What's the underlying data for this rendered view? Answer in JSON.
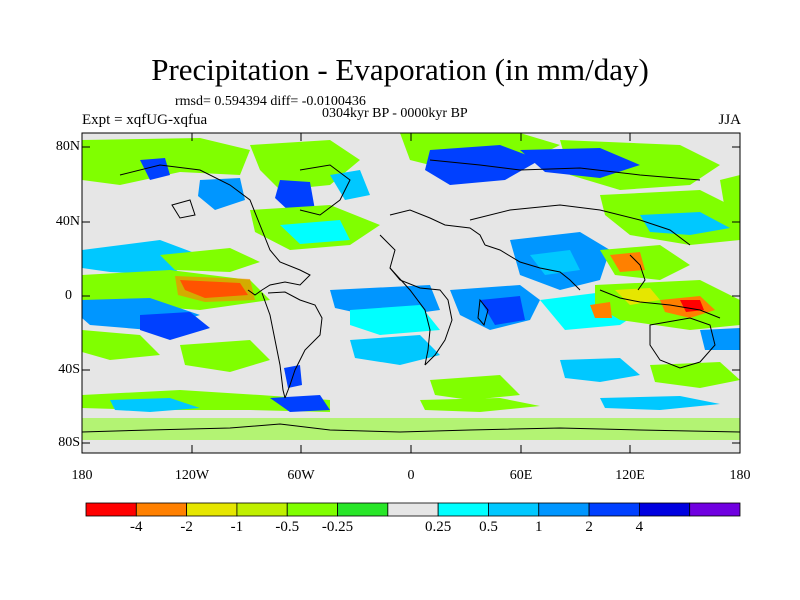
{
  "title": "Precipitation - Evaporation (in mm/day)",
  "stats_text": "rmsd= 0.594394 diff= -0.0100436",
  "period_text": "0304kyr BP - 0000kyr BP",
  "expt_text": "Expt = xqfUG-xqfua",
  "season_text": "JJA",
  "y_axis": {
    "ticks": [
      "80N",
      "40N",
      "0",
      "40S",
      "80S"
    ],
    "values": [
      80,
      40,
      0,
      -40,
      -80
    ]
  },
  "x_axis": {
    "ticks": [
      "180",
      "120W",
      "60W",
      "0",
      "60E",
      "120E",
      "180"
    ],
    "values": [
      -180,
      -120,
      -60,
      0,
      60,
      120,
      180
    ]
  },
  "colorbar": {
    "labels": [
      "-4",
      "-2",
      "-1",
      "-0.5",
      "-0.25",
      "0.25",
      "0.5",
      "1",
      "2",
      "4"
    ],
    "colors": [
      "#ff0000",
      "#ff8000",
      "#e6e600",
      "#c0f000",
      "#80ff00",
      "#28e628",
      "#e6e6e6",
      "#00ffff",
      "#00c8ff",
      "#0096ff",
      "#0040ff",
      "#0000e0",
      "#7000e0"
    ]
  },
  "map_colors": {
    "ocean_background": "#e6e6e6",
    "coastline": "#000000"
  }
}
